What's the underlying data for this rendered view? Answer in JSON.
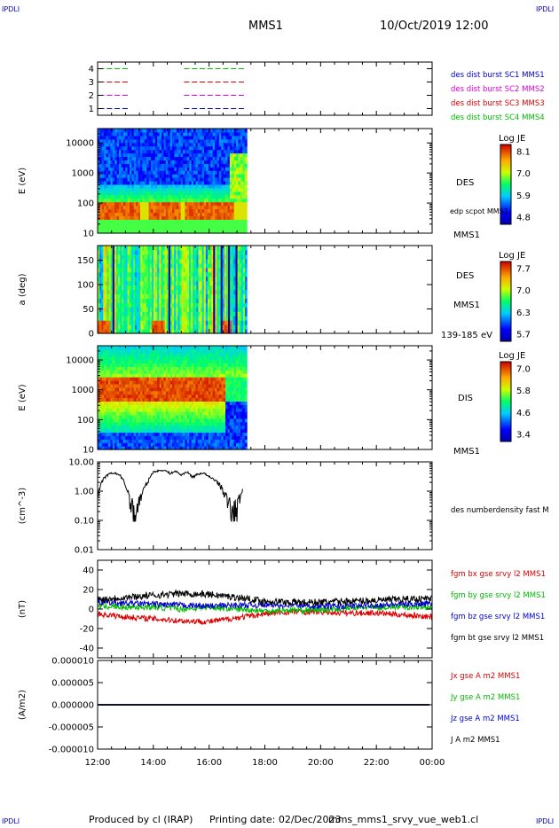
{
  "header": {
    "corner_label": "IPDLI",
    "spacecraft": "MMS1",
    "datetime": "10/Oct/2019 12:00"
  },
  "footer": {
    "producer": "Produced by cl (IRAP)",
    "printing_date": "Printing date: 02/Dec/2023",
    "filename": "mms_mms1_srvy_vue_web1.cl"
  },
  "colors": {
    "c1": "#0000cc",
    "c2": "#dd00dd",
    "c3": "#dd0000",
    "c4": "#00bb00",
    "bx": "#dd0000",
    "by": "#00bb00",
    "bz": "#0000cc",
    "bt": "#000000"
  },
  "chart_data": {
    "x_ticks": [
      "12:00",
      "14:00",
      "16:00",
      "18:00",
      "20:00",
      "22:00",
      "00:00"
    ],
    "x_hours": [
      12,
      14,
      16,
      18,
      20,
      22,
      24
    ],
    "data_end_hour": 17.35,
    "panels": [
      {
        "id": "burst",
        "type": "segments",
        "ylim": [
          0.5,
          4.5
        ],
        "yticks": [
          1,
          2,
          3,
          4
        ],
        "ytick_labels": [
          "1",
          "2",
          "3",
          "4"
        ],
        "legend": [
          {
            "label": "des dist burst SC1 MMS1",
            "color": "#0000cc"
          },
          {
            "label": "des dist burst SC2 MMS2",
            "color": "#dd00dd"
          },
          {
            "label": "des dist burst SC3 MMS3",
            "color": "#dd0000"
          },
          {
            "label": "des dist burst SC4 MMS4",
            "color": "#00bb00"
          }
        ]
      },
      {
        "id": "des-energy",
        "type": "heatmap",
        "scale": "log",
        "ylabel": "E (eV)",
        "ylim": [
          10,
          30000
        ],
        "ytick_labels": [
          "10",
          "100",
          "1000",
          "10000"
        ],
        "right_labels": [
          "DES",
          "edp scpot MMS1",
          "MMS1"
        ],
        "colorbar": {
          "title": "Log JE",
          "ticks": [
            "8.1",
            "7.0",
            "5.9",
            "4.8"
          ]
        }
      },
      {
        "id": "des-pitch",
        "type": "heatmap",
        "ylabel": "a (deg)",
        "ylim": [
          0,
          180
        ],
        "ytick_labels": [
          "0",
          "50",
          "100",
          "150"
        ],
        "right_labels": [
          "DES",
          "MMS1",
          "139-185 eV"
        ],
        "colorbar": {
          "title": "Log JE",
          "ticks": [
            "7.7",
            "7.0",
            "6.3",
            "5.7"
          ]
        }
      },
      {
        "id": "dis-energy",
        "type": "heatmap",
        "scale": "log",
        "ylabel": "E (eV)",
        "ylim": [
          10,
          30000
        ],
        "ytick_labels": [
          "10",
          "100",
          "1000",
          "10000"
        ],
        "right_labels": [
          "DIS",
          "MMS1"
        ],
        "colorbar": {
          "title": "Log JE",
          "ticks": [
            "7.0",
            "5.8",
            "4.6",
            "3.4"
          ]
        }
      },
      {
        "id": "density",
        "type": "line",
        "scale": "log",
        "ylabel": "(cm^-3)",
        "ylim": [
          0.01,
          10
        ],
        "ytick_labels": [
          "0.01",
          "0.10",
          "1.00",
          "10.00"
        ],
        "right_labels": [
          "des numberdensity fast M"
        ],
        "series": [
          {
            "name": "des numberdensity fast M",
            "color": "#000000",
            "x": [
              12.0,
              12.2,
              12.4,
              12.6,
              12.8,
              13.0,
              13.2,
              13.4,
              13.6,
              13.8,
              14.0,
              14.2,
              14.4,
              14.6,
              14.8,
              15.0,
              15.2,
              15.4,
              15.6,
              15.8,
              16.0,
              16.2,
              16.4,
              16.6,
              16.8,
              17.0,
              17.2
            ],
            "y": [
              0.6,
              2.5,
              3.8,
              4.2,
              3.5,
              1.5,
              0.3,
              0.2,
              0.8,
              2.0,
              4.5,
              5.0,
              5.2,
              4.0,
              4.8,
              3.5,
              4.6,
              3.0,
              3.8,
              4.2,
              3.0,
              2.5,
              1.5,
              0.6,
              0.2,
              0.25,
              1.0
            ]
          }
        ]
      },
      {
        "id": "magnetic-field",
        "type": "line",
        "ylabel": "(nT)",
        "ylim": [
          -50,
          50
        ],
        "ytick_labels": [
          "-40",
          "-20",
          "0",
          "20",
          "40"
        ],
        "series": [
          {
            "name": "fgm bx gse srvy l2 MMS1",
            "color": "#dd0000",
            "x": [
              12,
              13,
              14,
              15,
              16,
              17,
              18,
              19,
              20,
              21,
              22,
              23,
              24
            ],
            "y": [
              -5,
              -8,
              -10,
              -12,
              -13,
              -9,
              -5,
              -3,
              -3,
              -4,
              -4,
              -6,
              -8
            ]
          },
          {
            "name": "fgm by gse srvy l2 MMS1",
            "color": "#00bb00",
            "x": [
              12,
              13,
              14,
              15,
              16,
              17,
              18,
              19,
              20,
              21,
              22,
              23,
              24
            ],
            "y": [
              3,
              2,
              2,
              0,
              2,
              0,
              -2,
              -1,
              -1,
              1,
              2,
              2,
              2
            ]
          },
          {
            "name": "fgm bz gse srvy l2 MMS1",
            "color": "#0000cc",
            "x": [
              12,
              13,
              14,
              15,
              16,
              17,
              18,
              19,
              20,
              21,
              22,
              23,
              24
            ],
            "y": [
              7,
              6,
              5,
              4,
              3,
              4,
              4,
              4,
              3,
              3,
              4,
              5,
              6
            ]
          },
          {
            "name": "fgm bt gse srvy l2 MMS1",
            "color": "#000000",
            "x": [
              12,
              13,
              14,
              15,
              16,
              17,
              18,
              19,
              20,
              21,
              22,
              23,
              24
            ],
            "y": [
              10,
              12,
              14,
              16,
              15,
              12,
              8,
              7,
              7,
              8,
              9,
              10,
              11
            ]
          }
        ]
      },
      {
        "id": "current-density",
        "type": "line",
        "ylabel": "(A/m2)",
        "ylim": [
          -1e-05,
          1e-05
        ],
        "ytick_labels": [
          "-0.000010",
          "-0.000005",
          "0.000000",
          "0.000005",
          "0.000010"
        ],
        "series": [
          {
            "name": "Jx gse A m2 MMS1",
            "color": "#dd0000",
            "x": [
              12,
              24
            ],
            "y": [
              0,
              0
            ]
          },
          {
            "name": "Jy gse A m2 MMS1",
            "color": "#00bb00",
            "x": [
              12,
              24
            ],
            "y": [
              0,
              0
            ]
          },
          {
            "name": "Jz gse A m2 MMS1",
            "color": "#0000cc",
            "x": [
              12,
              24
            ],
            "y": [
              0,
              0
            ]
          },
          {
            "name": "J A m2 MMS1",
            "color": "#000000",
            "x": [
              12,
              24
            ],
            "y": [
              0,
              0
            ]
          }
        ]
      }
    ]
  }
}
